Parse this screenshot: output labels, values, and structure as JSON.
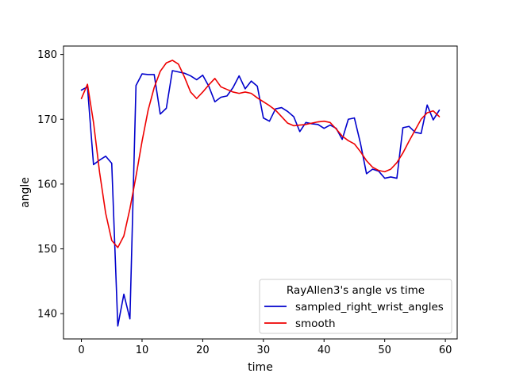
{
  "chart_data": {
    "type": "line",
    "title": "",
    "xlabel": "time",
    "ylabel": "angle",
    "xlim": [
      -2.95,
      61.95
    ],
    "ylim": [
      136.1,
      181.3
    ],
    "xticks": [
      0,
      10,
      20,
      30,
      40,
      50,
      60
    ],
    "yticks": [
      140,
      150,
      160,
      170,
      180
    ],
    "grid": false,
    "legend": {
      "title": "RayAllen3's angle vs time",
      "placement": "lower right"
    },
    "series": [
      {
        "name": "sampled_right_wrist_angles",
        "color": "#0000cc",
        "x": [
          0,
          1,
          2,
          3,
          4,
          5,
          6,
          7,
          8,
          9,
          10,
          11,
          12,
          13,
          14,
          15,
          16,
          17,
          18,
          19,
          20,
          21,
          22,
          23,
          24,
          25,
          26,
          27,
          28,
          29,
          30,
          31,
          32,
          33,
          34,
          35,
          36,
          37,
          38,
          39,
          40,
          41,
          42,
          43,
          44,
          45,
          46,
          47,
          48,
          49,
          50,
          51,
          52,
          53,
          54,
          55,
          56,
          57,
          58,
          59
        ],
        "y": [
          174.5,
          175.0,
          163.0,
          163.7,
          164.3,
          163.2,
          138.1,
          143.0,
          139.2,
          175.2,
          177.0,
          176.9,
          176.9,
          170.8,
          171.7,
          177.5,
          177.3,
          177.1,
          176.7,
          176.1,
          176.8,
          175.1,
          172.7,
          173.4,
          173.6,
          174.9,
          176.7,
          174.7,
          175.9,
          175.1,
          170.2,
          169.7,
          171.6,
          171.8,
          171.2,
          170.4,
          168.1,
          169.5,
          169.3,
          169.2,
          168.6,
          169.1,
          168.6,
          166.9,
          170.0,
          170.2,
          166.3,
          161.6,
          162.3,
          162.0,
          160.9,
          161.1,
          160.9,
          168.7,
          168.9,
          168.0,
          167.8,
          172.2,
          169.9,
          171.4
        ]
      },
      {
        "name": "smooth",
        "color": "#ee0000",
        "x": [
          0,
          1,
          2,
          3,
          4,
          5,
          6,
          7,
          8,
          9,
          10,
          11,
          12,
          13,
          14,
          15,
          16,
          17,
          18,
          19,
          20,
          21,
          22,
          23,
          24,
          25,
          26,
          27,
          28,
          29,
          30,
          31,
          32,
          33,
          34,
          35,
          36,
          37,
          38,
          39,
          40,
          41,
          42,
          43,
          44,
          45,
          46,
          47,
          48,
          49,
          50,
          51,
          52,
          53,
          54,
          55,
          56,
          57,
          58,
          59
        ],
        "y": [
          173.2,
          175.4,
          169.5,
          161.8,
          155.5,
          151.3,
          150.2,
          152.0,
          156.2,
          161.2,
          166.6,
          171.4,
          174.9,
          177.4,
          178.7,
          179.1,
          178.5,
          176.5,
          174.2,
          173.2,
          174.2,
          175.3,
          176.3,
          175.0,
          174.6,
          174.2,
          174.0,
          174.2,
          174.0,
          173.3,
          172.7,
          172.1,
          171.4,
          170.4,
          169.4,
          169.0,
          169.1,
          169.2,
          169.4,
          169.6,
          169.7,
          169.5,
          168.5,
          167.4,
          166.7,
          166.2,
          165.0,
          163.6,
          162.6,
          162.1,
          161.9,
          162.3,
          163.3,
          164.8,
          166.6,
          168.3,
          170.0,
          171.0,
          171.3,
          170.4
        ]
      }
    ]
  }
}
